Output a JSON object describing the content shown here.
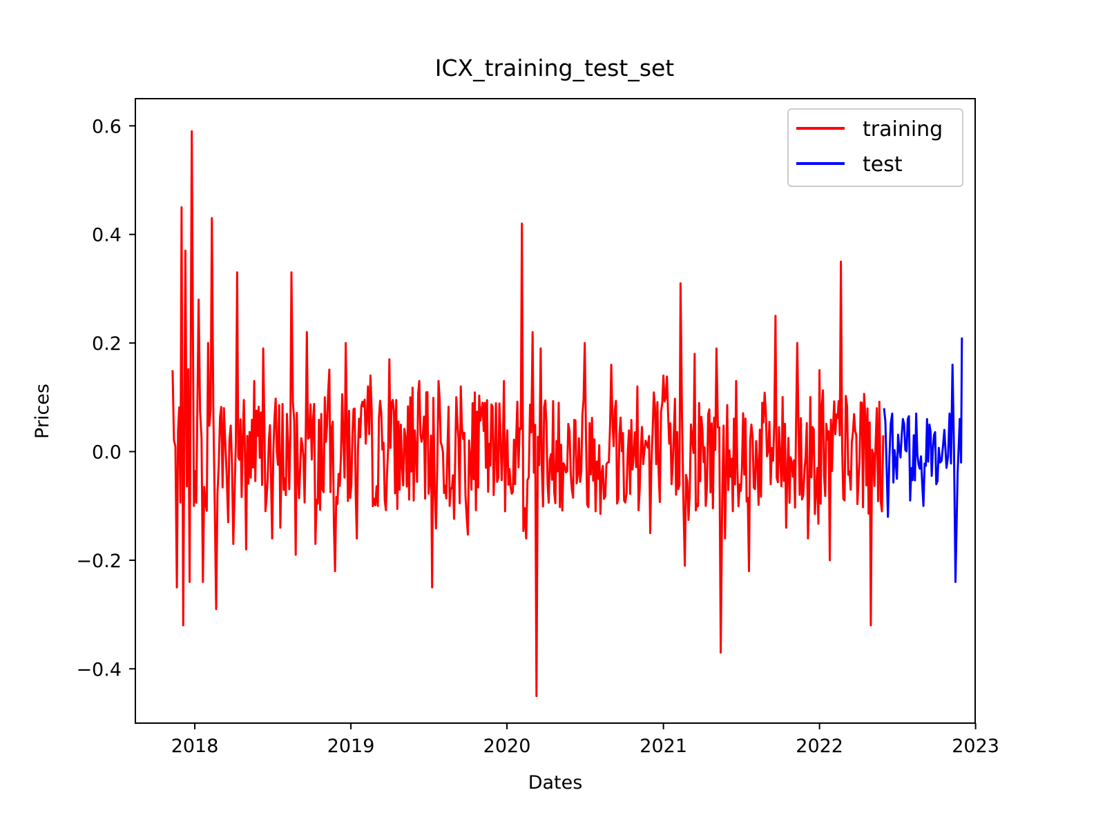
{
  "chart_data": {
    "type": "line",
    "title": "ICX_training_test_set",
    "xlabel": "Dates",
    "ylabel": "Prices",
    "x_axis_kind": "date",
    "xlim": [
      "2017-08-15",
      "2022-12-31"
    ],
    "ylim": [
      -0.5,
      0.65
    ],
    "x_ticks": [
      "2018-01-01",
      "2019-01-01",
      "2020-01-01",
      "2021-01-01",
      "2022-01-01",
      "2023-01-01"
    ],
    "x_tick_labels": [
      "2018",
      "2019",
      "2020",
      "2021",
      "2022",
      "2023"
    ],
    "y_ticks": [
      -0.4,
      -0.2,
      0.0,
      0.2,
      0.4,
      0.6
    ],
    "y_tick_labels": [
      "−0.4",
      "−0.2",
      "0.0",
      "0.2",
      "0.4",
      "0.6"
    ],
    "grid": false,
    "legend_position": "top-right",
    "series": [
      {
        "name": "training",
        "color": "#ff0000",
        "x": [
          "2017-11-10",
          "2017-11-20",
          "2017-12-01",
          "2017-12-05",
          "2017-12-10",
          "2017-12-20",
          "2017-12-25",
          "2017-12-30",
          "2018-01-10",
          "2018-01-20",
          "2018-02-01",
          "2018-02-10",
          "2018-02-20",
          "2018-03-10",
          "2018-03-20",
          "2018-04-01",
          "2018-04-10",
          "2018-05-01",
          "2018-05-20",
          "2018-06-10",
          "2018-07-01",
          "2018-07-20",
          "2018-08-15",
          "2018-08-25",
          "2018-09-20",
          "2018-10-10",
          "2018-11-01",
          "2018-11-25",
          "2018-12-20",
          "2019-01-15",
          "2019-02-10",
          "2019-03-05",
          "2019-04-01",
          "2019-04-25",
          "2019-05-20",
          "2019-06-10",
          "2019-07-10",
          "2019-07-25",
          "2019-08-20",
          "2019-09-15",
          "2019-10-10",
          "2019-11-05",
          "2019-12-01",
          "2019-12-25",
          "2020-01-20",
          "2020-02-05",
          "2020-02-15",
          "2020-03-01",
          "2020-03-10",
          "2020-03-20",
          "2020-04-05",
          "2020-05-01",
          "2020-06-01",
          "2020-07-01",
          "2020-08-01",
          "2020-09-01",
          "2020-10-01",
          "2020-11-01",
          "2020-12-01",
          "2021-01-01",
          "2021-01-20",
          "2021-02-10",
          "2021-02-20",
          "2021-03-15",
          "2021-04-10",
          "2021-05-05",
          "2021-05-15",
          "2021-05-25",
          "2021-06-20",
          "2021-07-20",
          "2021-08-20",
          "2021-09-20",
          "2021-10-15",
          "2021-11-10",
          "2021-12-05",
          "2022-01-01",
          "2022-01-25",
          "2022-02-20",
          "2022-03-15",
          "2022-04-10",
          "2022-05-01",
          "2022-05-15",
          "2022-05-30"
        ],
        "y": [
          0.15,
          -0.25,
          0.45,
          -0.32,
          0.37,
          -0.24,
          0.59,
          -0.1,
          0.28,
          -0.24,
          0.2,
          0.43,
          -0.29,
          0.08,
          -0.13,
          -0.17,
          0.33,
          -0.18,
          0.13,
          0.19,
          -0.16,
          -0.14,
          0.33,
          -0.19,
          0.22,
          -0.17,
          0.1,
          -0.22,
          0.2,
          -0.16,
          0.12,
          -0.1,
          0.17,
          -0.07,
          0.1,
          0.13,
          -0.25,
          0.13,
          -0.1,
          0.12,
          -0.07,
          0.09,
          -0.08,
          0.13,
          -0.06,
          0.42,
          -0.16,
          0.22,
          -0.45,
          0.19,
          -0.06,
          0.09,
          -0.07,
          0.2,
          -0.05,
          0.16,
          -0.09,
          0.12,
          -0.15,
          0.14,
          -0.06,
          0.31,
          -0.21,
          0.18,
          -0.1,
          0.19,
          -0.37,
          -0.16,
          0.13,
          -0.22,
          0.09,
          0.25,
          -0.14,
          0.2,
          -0.16,
          0.15,
          -0.2,
          0.35,
          -0.07,
          0.09,
          -0.32,
          0.08,
          0.03
        ]
      },
      {
        "name": "test",
        "color": "#0000ff",
        "x": [
          "2022-06-01",
          "2022-06-10",
          "2022-06-20",
          "2022-07-01",
          "2022-07-15",
          "2022-08-01",
          "2022-08-15",
          "2022-09-01",
          "2022-09-15",
          "2022-10-01",
          "2022-10-10",
          "2022-10-20",
          "2022-10-25",
          "2022-11-01",
          "2022-11-08",
          "2022-11-15",
          "2022-11-20",
          "2022-11-25",
          "2022-11-28",
          "2022-11-30"
        ],
        "y": [
          0.08,
          -0.12,
          0.07,
          -0.05,
          0.06,
          -0.09,
          0.07,
          -0.1,
          0.05,
          -0.06,
          -0.02,
          0.04,
          -0.03,
          0.07,
          0.16,
          -0.24,
          -0.04,
          0.06,
          -0.02,
          0.21
        ]
      }
    ]
  }
}
